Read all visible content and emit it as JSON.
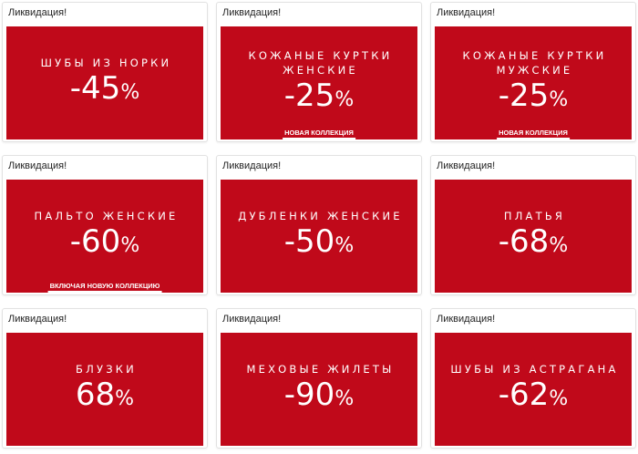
{
  "colors": {
    "banner_red": "#c0091a",
    "card_border": "#e2e2e2"
  },
  "cards": [
    {
      "title": "Ликвидация!",
      "category_lines": [
        "ШУБЫ ИЗ НОРКИ"
      ],
      "discount": "-45",
      "percent": "%",
      "tag": ""
    },
    {
      "title": "Ликвидация!",
      "category_lines": [
        "КОЖАНЫЕ КУРТКИ",
        "ЖЕНСКИЕ"
      ],
      "discount": "-25",
      "percent": "%",
      "tag": "НОВАЯ КОЛЛЕКЦИЯ"
    },
    {
      "title": "Ликвидация!",
      "category_lines": [
        "КОЖАНЫЕ КУРТКИ",
        "МУЖСКИЕ"
      ],
      "discount": "-25",
      "percent": "%",
      "tag": "НОВАЯ КОЛЛЕКЦИЯ"
    },
    {
      "title": "Ликвидация!",
      "category_lines": [
        "ПАЛЬТО ЖЕНСКИЕ"
      ],
      "discount": "-60",
      "percent": "%",
      "tag": "ВКЛЮЧАЯ НОВУЮ КОЛЛЕКЦИЮ"
    },
    {
      "title": "Ликвидация!",
      "category_lines": [
        "ДУБЛЕНКИ ЖЕНСКИЕ"
      ],
      "discount": "-50",
      "percent": "%",
      "tag": ""
    },
    {
      "title": "Ликвидация!",
      "category_lines": [
        "ПЛАТЬЯ"
      ],
      "discount": "-68",
      "percent": "%",
      "tag": ""
    },
    {
      "title": "Ликвидация!",
      "category_lines": [
        "БЛУЗКИ"
      ],
      "discount": "68",
      "percent": "%",
      "tag": ""
    },
    {
      "title": "Ликвидация!",
      "category_lines": [
        "МЕХОВЫЕ ЖИЛЕТЫ"
      ],
      "discount": "-90",
      "percent": "%",
      "tag": ""
    },
    {
      "title": "Ликвидация!",
      "category_lines": [
        "ШУБЫ ИЗ АСТРАГАНА"
      ],
      "discount": "-62",
      "percent": "%",
      "tag": ""
    }
  ]
}
